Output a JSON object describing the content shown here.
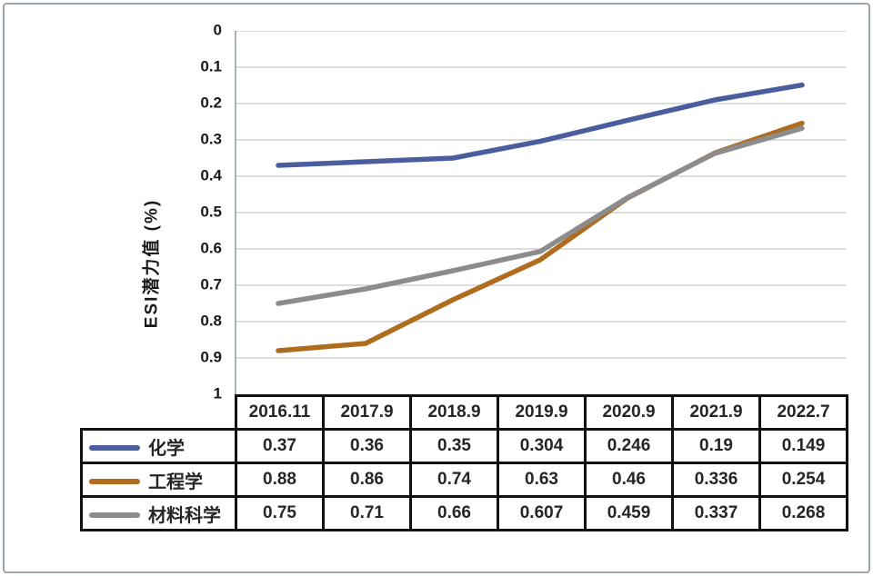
{
  "chart_data": {
    "type": "line",
    "title": "",
    "xlabel": "",
    "ylabel": "ESI潜力值 (%)",
    "categories": [
      "2016.11",
      "2017.9",
      "2018.9",
      "2019.9",
      "2020.9",
      "2021.9",
      "2022.7"
    ],
    "series": [
      {
        "name": "化学",
        "color": "#4a5d9e",
        "values": [
          0.37,
          0.36,
          0.35,
          0.304,
          0.246,
          0.19,
          0.149
        ]
      },
      {
        "name": "工程学",
        "color": "#b06c1e",
        "values": [
          0.88,
          0.86,
          0.74,
          0.63,
          0.46,
          0.336,
          0.254
        ]
      },
      {
        "name": "材料科学",
        "color": "#8c8c8c",
        "values": [
          0.75,
          0.71,
          0.66,
          0.607,
          0.459,
          0.337,
          0.268
        ]
      }
    ],
    "y_axis": {
      "min": 0,
      "max": 1,
      "step": 0.1,
      "inverted": true,
      "tick_labels": [
        "0",
        "0.1",
        "0.2",
        "0.3",
        "0.4",
        "0.5",
        "0.6",
        "0.7",
        "0.8",
        "0.9",
        "1"
      ]
    },
    "grid": true,
    "legend_position": "table-left",
    "colors": {
      "gridline": "#d2d2d2",
      "axis_line": "#a2aab4",
      "table_border": "#111111",
      "text": "#1a1a1a",
      "window_border": "#9aa4b4"
    }
  }
}
